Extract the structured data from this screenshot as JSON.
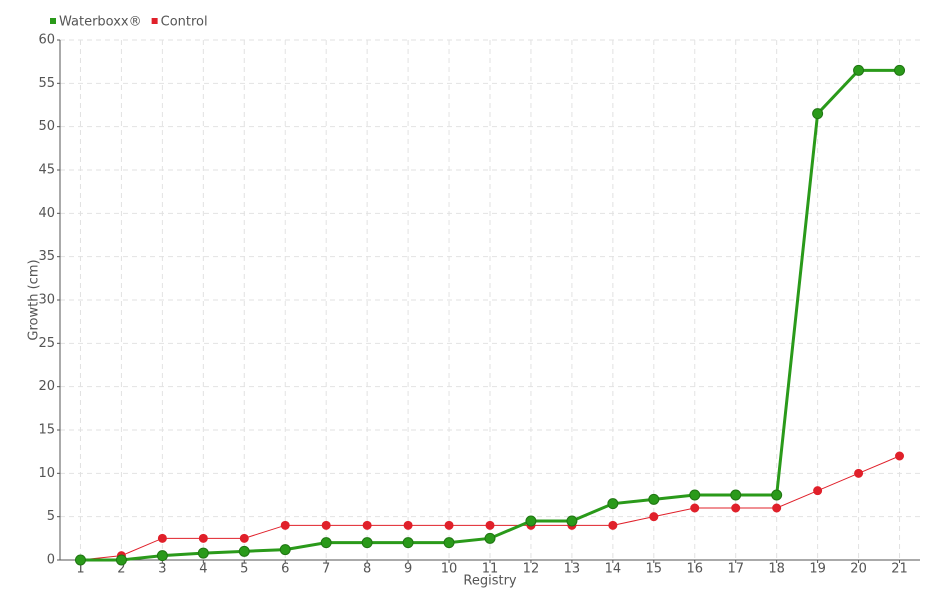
{
  "chart_data": {
    "type": "line",
    "x_label": "Registry",
    "y_label": "Growth (cm)",
    "categories": [
      "1",
      "2",
      "3",
      "4",
      "5",
      "6",
      "7",
      "8",
      "9",
      "10",
      "11",
      "12",
      "13",
      "14",
      "15",
      "16",
      "17",
      "18",
      "19",
      "20",
      "21"
    ],
    "series": [
      {
        "name": "Waterboxx®",
        "color": "#2a9a1a",
        "values": [
          0,
          0,
          0.5,
          0.8,
          1,
          1.2,
          2,
          2,
          2,
          2,
          2.5,
          4.5,
          4.5,
          6.5,
          7,
          7.5,
          7.5,
          7.5,
          51.5,
          56.5,
          56.5
        ]
      },
      {
        "name": "Control",
        "color": "#e0202a",
        "values": [
          0,
          0.5,
          2.5,
          2.5,
          2.5,
          4,
          4,
          4,
          4,
          4,
          4,
          4,
          4,
          4,
          5,
          6,
          6,
          6,
          8,
          10,
          12
        ]
      }
    ],
    "ylim": [
      0,
      60
    ],
    "yticks": [
      0,
      5,
      10,
      15,
      20,
      25,
      30,
      35,
      40,
      45,
      50,
      55,
      60
    ],
    "grid": true,
    "legend": "top-left"
  }
}
